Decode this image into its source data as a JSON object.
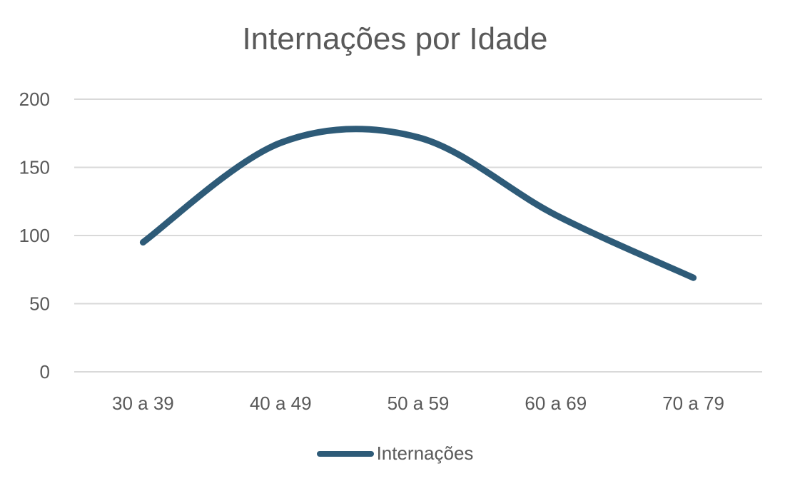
{
  "chart_data": {
    "type": "line",
    "title": "Internações por Idade",
    "categories": [
      "30 a 39",
      "40 a 49",
      "50 a 59",
      "60 a 69",
      "70 a 79"
    ],
    "series": [
      {
        "name": "Internações",
        "values": [
          95,
          168,
          172,
          115,
          69
        ],
        "color": "#2E5B78",
        "smooth": true
      }
    ],
    "xlabel": "",
    "ylabel": "",
    "ylim": [
      0,
      200
    ],
    "yticks": [
      0,
      50,
      100,
      150,
      200
    ],
    "grid": true,
    "gridColor": "#D9D9D9",
    "legend": "bottom"
  }
}
